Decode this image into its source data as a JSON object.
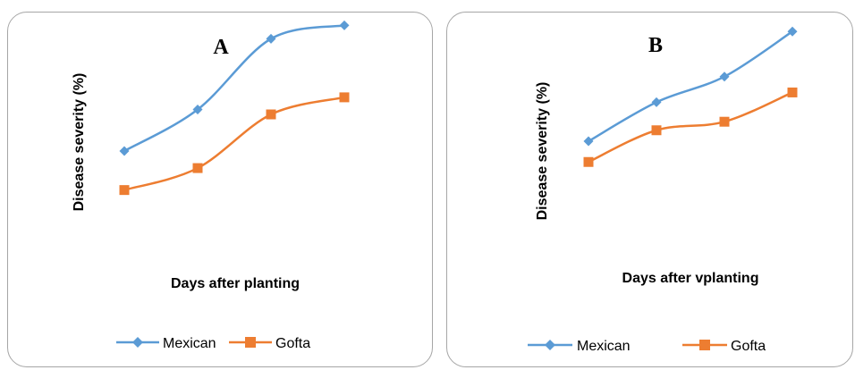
{
  "chart_data": [
    {
      "type": "line",
      "title": "A",
      "xlabel": "Days after planting",
      "ylabel": "Disease severity (%)",
      "x": [
        1,
        2,
        3,
        4
      ],
      "ylim": [
        0,
        100
      ],
      "series": [
        {
          "name": "Mexican",
          "color": "#5b9bd5",
          "marker": "diamond",
          "values": [
            48,
            65,
            94,
            99.5
          ]
        },
        {
          "name": "Gofta",
          "color": "#ed7d31",
          "marker": "square",
          "values": [
            32,
            41,
            63,
            70
          ]
        }
      ],
      "grid": false,
      "legend": "bottom"
    },
    {
      "type": "line",
      "title": "B",
      "xlabel": "Days after vplanting",
      "ylabel": "Disease severity (%)",
      "x": [
        1,
        2,
        3,
        4
      ],
      "ylim": [
        0,
        100
      ],
      "series": [
        {
          "name": "Mexican",
          "color": "#5b9bd5",
          "marker": "diamond",
          "values": [
            52,
            68,
            78.5,
            97
          ]
        },
        {
          "name": "Gofta",
          "color": "#ed7d31",
          "marker": "square",
          "values": [
            43.5,
            56.5,
            60,
            72
          ]
        }
      ],
      "grid": false,
      "legend": "bottom"
    }
  ]
}
